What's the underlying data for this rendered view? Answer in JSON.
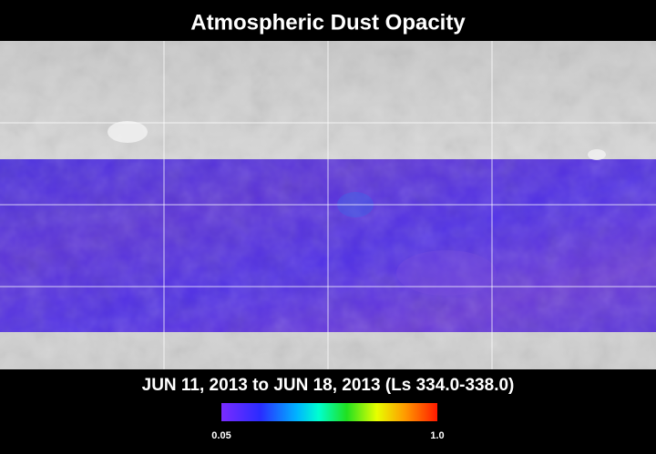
{
  "title": "Atmospheric Dust Opacity",
  "date_range": "JUN 11, 2013 to JUN 18, 2013 (Ls 334.0-338.0)",
  "colorbar": {
    "lim": [
      0.05,
      1.0
    ],
    "ticks": [
      0.05,
      {
        "value": 1.0,
        "label": "1.0"
      }
    ]
  }
}
